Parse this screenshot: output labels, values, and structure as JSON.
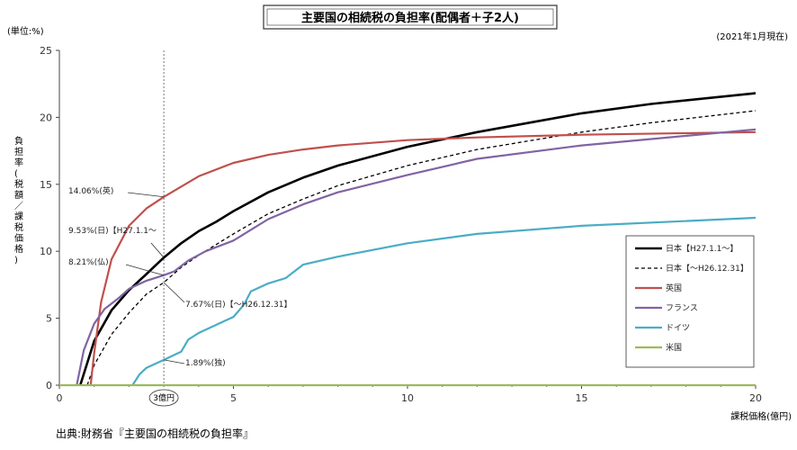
{
  "header": {
    "title": "主要国の相続税の負担率(配偶者＋子2人)",
    "unit_label": "(単位:%)",
    "date_note": "(2021年1月現在)",
    "source": "出典:財務省『主要国の相続税の負担率』"
  },
  "chart_data": {
    "type": "line",
    "title": "主要国の相続税の負担率(配偶者＋子2人)",
    "xlabel": "課税価格(億円)",
    "ylabel": "負担率(税額／課税価格)",
    "xlim": [
      0,
      20
    ],
    "ylim": [
      0,
      25
    ],
    "x_ticks": [
      0,
      5,
      10,
      15,
      20
    ],
    "y_ticks": [
      0,
      5,
      10,
      15,
      20,
      25
    ],
    "grid": false,
    "legend_position": "right",
    "reference_x": 3,
    "reference_label": "3億円",
    "series": [
      {
        "name": "日本【H27.1.1～】",
        "color": "#000000",
        "dash": "solid",
        "x": [
          0.6,
          1.0,
          1.5,
          2.0,
          2.5,
          3.0,
          3.5,
          4.0,
          4.5,
          5.0,
          6.0,
          7.0,
          8.0,
          10.0,
          12.0,
          15.0,
          17.0,
          20.0
        ],
        "y": [
          0,
          3.3,
          5.6,
          7.1,
          8.3,
          9.53,
          10.6,
          11.5,
          12.2,
          13.0,
          14.4,
          15.5,
          16.4,
          17.8,
          18.9,
          20.3,
          21.0,
          21.8
        ]
      },
      {
        "name": "日本【～H26.12.31】",
        "color": "#000000",
        "dash": "dashed",
        "x": [
          0.8,
          1.0,
          1.5,
          2.0,
          2.5,
          3.0,
          3.5,
          4.0,
          5.0,
          6.0,
          7.0,
          8.0,
          10.0,
          12.0,
          15.0,
          17.0,
          20.0
        ],
        "y": [
          0,
          1.5,
          3.8,
          5.4,
          6.8,
          7.67,
          8.8,
          9.7,
          11.3,
          12.8,
          13.9,
          14.9,
          16.4,
          17.6,
          18.9,
          19.6,
          20.5
        ]
      },
      {
        "name": "英国",
        "color": "#c0504d",
        "dash": "solid",
        "x": [
          0.9,
          1.0,
          1.2,
          1.5,
          2.0,
          2.5,
          3.0,
          4.0,
          5.0,
          6.0,
          7.0,
          8.0,
          10.0,
          12.0,
          15.0,
          20.0
        ],
        "y": [
          0,
          2.4,
          6.2,
          9.4,
          11.9,
          13.2,
          14.06,
          15.6,
          16.6,
          17.2,
          17.6,
          17.9,
          18.3,
          18.5,
          18.7,
          18.9
        ]
      },
      {
        "name": "フランス",
        "color": "#8064a2",
        "dash": "solid",
        "x": [
          0.5,
          0.7,
          1.0,
          1.3,
          1.7,
          2.0,
          2.5,
          3.0,
          3.3,
          3.7,
          4.2,
          5.0,
          6.0,
          7.0,
          8.0,
          10.0,
          12.0,
          15.0,
          20.0
        ],
        "y": [
          0,
          2.6,
          4.6,
          5.7,
          6.5,
          7.2,
          7.8,
          8.21,
          8.5,
          9.3,
          10.0,
          10.8,
          12.4,
          13.5,
          14.4,
          15.7,
          16.9,
          17.9,
          19.1
        ]
      },
      {
        "name": "ドイツ",
        "color": "#4bacc6",
        "dash": "solid",
        "x": [
          2.1,
          2.3,
          2.5,
          3.0,
          3.5,
          3.7,
          4.0,
          4.5,
          5.0,
          5.3,
          5.5,
          6.0,
          6.5,
          7.0,
          8.0,
          10.0,
          12.0,
          15.0,
          20.0
        ],
        "y": [
          0,
          0.8,
          1.3,
          1.89,
          2.5,
          3.4,
          3.9,
          4.5,
          5.1,
          6.0,
          7.0,
          7.6,
          8.0,
          9.0,
          9.6,
          10.6,
          11.3,
          11.9,
          12.5
        ]
      },
      {
        "name": "米国",
        "color": "#9bbb59",
        "dash": "solid",
        "x": [
          0,
          20
        ],
        "y": [
          0,
          0
        ]
      }
    ],
    "annotations": [
      {
        "text": "14.06%(英)",
        "x": 3.0,
        "y": 14.06
      },
      {
        "text": "9.53%(日)【H27.1.1～",
        "x": 3.0,
        "y": 9.53
      },
      {
        "text": "8.21%(仏)",
        "x": 3.0,
        "y": 8.21
      },
      {
        "text": "7.67%(日)【～H26.12.31】",
        "x": 3.0,
        "y": 7.67
      },
      {
        "text": "1.89%(独)",
        "x": 3.0,
        "y": 1.89
      }
    ]
  }
}
